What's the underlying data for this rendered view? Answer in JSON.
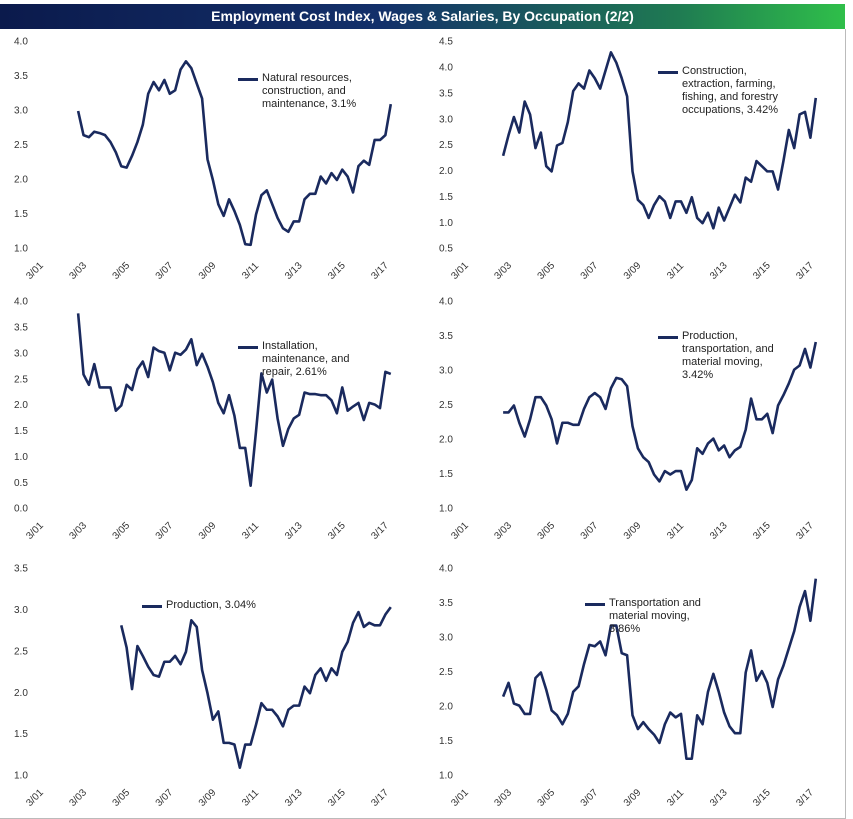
{
  "title": "Employment Cost Index, Wages & Salaries, By Occupation (2/2)",
  "chart_data": [
    {
      "type": "line",
      "categories": [
        "3/01",
        null,
        null,
        null,
        null,
        null,
        null,
        null,
        "3/03",
        null,
        null,
        null,
        null,
        null,
        null,
        null,
        "3/05",
        null,
        null,
        null,
        null,
        null,
        null,
        null,
        "3/07",
        null,
        null,
        null,
        null,
        null,
        null,
        null,
        "3/09",
        null,
        null,
        null,
        null,
        null,
        null,
        null,
        "3/11",
        null,
        null,
        null,
        null,
        null,
        null,
        null,
        "3/13",
        null,
        null,
        null,
        null,
        null,
        null,
        null,
        "3/15",
        null,
        null,
        null,
        null,
        null,
        null,
        null,
        "3/17",
        null,
        null,
        null
      ],
      "series": [
        {
          "name": "Natural resources, construction, and maintenance, 3.1%",
          "color": "#1a2a5e",
          "values": [
            null,
            null,
            null,
            null,
            null,
            null,
            null,
            null,
            3.0,
            2.65,
            2.62,
            2.7,
            2.68,
            2.65,
            2.55,
            2.4,
            2.2,
            2.18,
            2.35,
            2.55,
            2.8,
            3.25,
            3.42,
            3.3,
            3.45,
            3.25,
            3.3,
            3.6,
            3.72,
            3.62,
            3.4,
            3.18,
            2.3,
            2.0,
            1.65,
            1.48,
            1.72,
            1.55,
            1.35,
            1.07,
            1.06,
            1.5,
            1.78,
            1.85,
            1.65,
            1.45,
            1.3,
            1.25,
            1.4,
            1.4,
            1.72,
            1.8,
            1.8,
            2.05,
            1.95,
            2.1,
            2.0,
            2.15,
            2.05,
            1.82,
            2.2,
            2.28,
            2.22,
            2.58,
            2.58,
            2.65,
            3.1,
            null
          ]
        }
      ],
      "ylim": [
        1,
        4
      ],
      "yticks": [
        {
          "value": 1,
          "label": "1.0"
        },
        1.5,
        {
          "value": 2,
          "label": "2.0"
        },
        2.5,
        {
          "value": 3,
          "label": "3.0"
        },
        3.5,
        {
          "value": 4,
          "label": "4.0"
        }
      ]
    },
    {
      "type": "line",
      "categories": [
        "3/01",
        null,
        null,
        null,
        null,
        null,
        null,
        null,
        "3/03",
        null,
        null,
        null,
        null,
        null,
        null,
        null,
        "3/05",
        null,
        null,
        null,
        null,
        null,
        null,
        null,
        "3/07",
        null,
        null,
        null,
        null,
        null,
        null,
        null,
        "3/09",
        null,
        null,
        null,
        null,
        null,
        null,
        null,
        "3/11",
        null,
        null,
        null,
        null,
        null,
        null,
        null,
        "3/13",
        null,
        null,
        null,
        null,
        null,
        null,
        null,
        "3/15",
        null,
        null,
        null,
        null,
        null,
        null,
        null,
        "3/17",
        null,
        null,
        null
      ],
      "series": [
        {
          "name": "Construction, extraction, farming, fishing, and forestry occupations, 3.42%",
          "color": "#1a2a5e",
          "values": [
            null,
            null,
            null,
            null,
            null,
            null,
            null,
            null,
            2.3,
            2.7,
            3.05,
            2.75,
            3.35,
            3.1,
            2.45,
            2.75,
            2.1,
            2.0,
            2.5,
            2.55,
            2.95,
            3.55,
            3.7,
            3.6,
            3.95,
            3.8,
            3.6,
            3.95,
            4.3,
            4.1,
            3.8,
            3.45,
            2.0,
            1.45,
            1.35,
            1.1,
            1.35,
            1.52,
            1.42,
            1.1,
            1.42,
            1.42,
            1.2,
            1.5,
            1.1,
            1.0,
            1.2,
            0.9,
            1.3,
            1.05,
            1.3,
            1.55,
            1.4,
            1.88,
            1.8,
            2.2,
            2.1,
            2.0,
            2.0,
            1.65,
            2.2,
            2.8,
            2.45,
            3.1,
            3.15,
            2.65,
            3.42,
            null
          ]
        }
      ],
      "ylim": [
        0.5,
        4.5
      ],
      "yticks": [
        0.5,
        {
          "value": 1,
          "label": "1.0"
        },
        1.5,
        {
          "value": 2,
          "label": "2.0"
        },
        2.5,
        {
          "value": 3,
          "label": "3.0"
        },
        3.5,
        {
          "value": 4,
          "label": "4.0"
        },
        4.5
      ]
    },
    {
      "type": "line",
      "categories": [
        "3/01",
        null,
        null,
        null,
        null,
        null,
        null,
        null,
        "3/03",
        null,
        null,
        null,
        null,
        null,
        null,
        null,
        "3/05",
        null,
        null,
        null,
        null,
        null,
        null,
        null,
        "3/07",
        null,
        null,
        null,
        null,
        null,
        null,
        null,
        "3/09",
        null,
        null,
        null,
        null,
        null,
        null,
        null,
        "3/11",
        null,
        null,
        null,
        null,
        null,
        null,
        null,
        "3/13",
        null,
        null,
        null,
        null,
        null,
        null,
        null,
        "3/15",
        null,
        null,
        null,
        null,
        null,
        null,
        null,
        "3/17",
        null,
        null,
        null
      ],
      "series": [
        {
          "name": "Installation, maintenance, and repair, 2.61%",
          "color": "#1a2a5e",
          "values": [
            null,
            null,
            null,
            null,
            null,
            null,
            null,
            null,
            3.78,
            2.6,
            2.4,
            2.8,
            2.35,
            2.35,
            2.35,
            1.9,
            2.0,
            2.4,
            2.3,
            2.7,
            2.85,
            2.55,
            3.12,
            3.05,
            3.02,
            2.68,
            3.02,
            2.98,
            3.08,
            3.28,
            2.78,
            3.0,
            2.75,
            2.45,
            2.05,
            1.85,
            2.2,
            1.8,
            1.18,
            1.18,
            0.45,
            1.5,
            2.62,
            2.25,
            2.5,
            1.75,
            1.22,
            1.55,
            1.75,
            1.82,
            2.25,
            2.22,
            2.22,
            2.2,
            2.2,
            2.1,
            1.85,
            2.35,
            1.9,
            1.98,
            2.05,
            1.72,
            2.05,
            2.02,
            1.95,
            2.65,
            2.61,
            null
          ]
        }
      ],
      "ylim": [
        0,
        4
      ],
      "yticks": [
        {
          "value": 0,
          "label": "0.0"
        },
        0.5,
        {
          "value": 1,
          "label": "1.0"
        },
        1.5,
        {
          "value": 2,
          "label": "2.0"
        },
        2.5,
        {
          "value": 3,
          "label": "3.0"
        },
        3.5,
        {
          "value": 4,
          "label": "4.0"
        }
      ]
    },
    {
      "type": "line",
      "categories": [
        "3/01",
        null,
        null,
        null,
        null,
        null,
        null,
        null,
        "3/03",
        null,
        null,
        null,
        null,
        null,
        null,
        null,
        "3/05",
        null,
        null,
        null,
        null,
        null,
        null,
        null,
        "3/07",
        null,
        null,
        null,
        null,
        null,
        null,
        null,
        "3/09",
        null,
        null,
        null,
        null,
        null,
        null,
        null,
        "3/11",
        null,
        null,
        null,
        null,
        null,
        null,
        null,
        "3/13",
        null,
        null,
        null,
        null,
        null,
        null,
        null,
        "3/15",
        null,
        null,
        null,
        null,
        null,
        null,
        null,
        "3/17",
        null,
        null,
        null
      ],
      "series": [
        {
          "name": "Production, transportation, and material moving, 3.42%",
          "color": "#1a2a5e",
          "values": [
            null,
            null,
            null,
            null,
            null,
            null,
            null,
            null,
            2.4,
            2.4,
            2.5,
            2.25,
            2.05,
            2.3,
            2.62,
            2.62,
            2.5,
            2.3,
            1.95,
            2.25,
            2.25,
            2.22,
            2.22,
            2.45,
            2.62,
            2.68,
            2.62,
            2.45,
            2.75,
            2.9,
            2.88,
            2.78,
            2.2,
            1.88,
            1.75,
            1.68,
            1.5,
            1.4,
            1.55,
            1.5,
            1.55,
            1.55,
            1.28,
            1.42,
            1.88,
            1.8,
            1.95,
            2.02,
            1.85,
            1.92,
            1.75,
            1.85,
            1.9,
            2.15,
            2.6,
            2.3,
            2.3,
            2.38,
            2.1,
            2.5,
            2.65,
            2.82,
            3.02,
            3.08,
            3.32,
            3.05,
            3.42,
            null
          ]
        }
      ],
      "ylim": [
        1,
        4
      ],
      "yticks": [
        {
          "value": 1,
          "label": "1.0"
        },
        1.5,
        {
          "value": 2,
          "label": "2.0"
        },
        2.5,
        {
          "value": 3,
          "label": "3.0"
        },
        3.5,
        {
          "value": 4,
          "label": "4.0"
        }
      ]
    },
    {
      "type": "line",
      "categories": [
        "3/01",
        null,
        null,
        null,
        null,
        null,
        null,
        null,
        "3/03",
        null,
        null,
        null,
        null,
        null,
        null,
        null,
        "3/05",
        null,
        null,
        null,
        null,
        null,
        null,
        null,
        "3/07",
        null,
        null,
        null,
        null,
        null,
        null,
        null,
        "3/09",
        null,
        null,
        null,
        null,
        null,
        null,
        null,
        "3/11",
        null,
        null,
        null,
        null,
        null,
        null,
        null,
        "3/13",
        null,
        null,
        null,
        null,
        null,
        null,
        null,
        "3/15",
        null,
        null,
        null,
        null,
        null,
        null,
        null,
        "3/17",
        null,
        null,
        null
      ],
      "series": [
        {
          "name": "Production, 3.04%",
          "color": "#1a2a5e",
          "values": [
            null,
            null,
            null,
            null,
            null,
            null,
            null,
            null,
            null,
            null,
            null,
            null,
            null,
            null,
            null,
            null,
            2.82,
            2.55,
            2.05,
            2.57,
            2.45,
            2.32,
            2.22,
            2.2,
            2.38,
            2.38,
            2.45,
            2.35,
            2.5,
            2.88,
            2.8,
            2.28,
            2.0,
            1.68,
            1.78,
            1.4,
            1.4,
            1.38,
            1.1,
            1.38,
            1.38,
            1.62,
            1.88,
            1.8,
            1.8,
            1.72,
            1.6,
            1.8,
            1.85,
            1.85,
            2.08,
            2.0,
            2.22,
            2.3,
            2.15,
            2.3,
            2.22,
            2.5,
            2.62,
            2.85,
            2.98,
            2.8,
            2.85,
            2.82,
            2.82,
            2.95,
            3.04,
            null
          ]
        }
      ],
      "ylim": [
        1,
        3.5
      ],
      "yticks": [
        {
          "value": 1,
          "label": "1.0"
        },
        1.5,
        {
          "value": 2,
          "label": "2.0"
        },
        2.5,
        {
          "value": 3,
          "label": "3.0"
        },
        3.5
      ]
    },
    {
      "type": "line",
      "categories": [
        "3/01",
        null,
        null,
        null,
        null,
        null,
        null,
        null,
        "3/03",
        null,
        null,
        null,
        null,
        null,
        null,
        null,
        "3/05",
        null,
        null,
        null,
        null,
        null,
        null,
        null,
        "3/07",
        null,
        null,
        null,
        null,
        null,
        null,
        null,
        "3/09",
        null,
        null,
        null,
        null,
        null,
        null,
        null,
        "3/11",
        null,
        null,
        null,
        null,
        null,
        null,
        null,
        "3/13",
        null,
        null,
        null,
        null,
        null,
        null,
        null,
        "3/15",
        null,
        null,
        null,
        null,
        null,
        null,
        null,
        "3/17",
        null,
        null,
        null
      ],
      "series": [
        {
          "name": "Transportation and material moving, 3.86%",
          "color": "#1a2a5e",
          "values": [
            null,
            null,
            null,
            null,
            null,
            null,
            null,
            null,
            2.15,
            2.35,
            2.05,
            2.02,
            1.9,
            1.9,
            2.42,
            2.5,
            2.25,
            1.95,
            1.88,
            1.75,
            1.9,
            2.22,
            2.3,
            2.62,
            2.9,
            2.88,
            2.95,
            2.75,
            3.18,
            3.18,
            2.78,
            2.75,
            1.88,
            1.68,
            1.78,
            1.68,
            1.6,
            1.48,
            1.75,
            1.92,
            1.85,
            1.9,
            1.25,
            1.25,
            1.88,
            1.75,
            2.22,
            2.48,
            2.22,
            1.92,
            1.72,
            1.62,
            1.62,
            2.5,
            2.82,
            2.38,
            2.52,
            2.35,
            2.0,
            2.4,
            2.6,
            2.85,
            3.1,
            3.45,
            3.68,
            3.25,
            3.86,
            null
          ]
        }
      ],
      "ylim": [
        1,
        4
      ],
      "yticks": [
        {
          "value": 1,
          "label": "1.0"
        },
        1.5,
        {
          "value": 2,
          "label": "2.0"
        },
        2.5,
        {
          "value": 3,
          "label": "3.0"
        },
        3.5,
        {
          "value": 4,
          "label": "4.0"
        }
      ]
    }
  ]
}
